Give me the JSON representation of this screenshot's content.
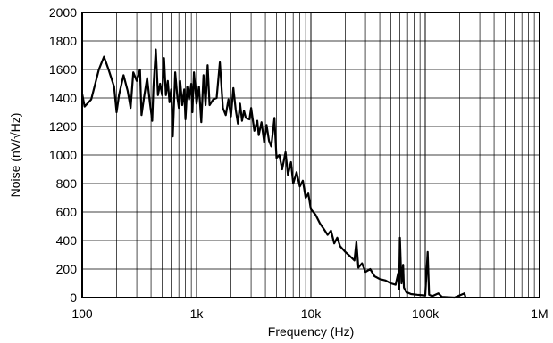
{
  "chart_data": {
    "type": "line",
    "title": "",
    "xlabel": "Frequency (Hz)",
    "ylabel": "Noise (nV/√Hz)",
    "x_scale": "log",
    "xlim": [
      100,
      1000000
    ],
    "ylim": [
      0,
      2000
    ],
    "grid": true,
    "legend": "none",
    "x_ticks": [
      100,
      1000,
      10000,
      100000,
      1000000
    ],
    "x_tick_labels": [
      "100",
      "1k",
      "10k",
      "100k",
      "1M"
    ],
    "y_ticks": [
      0,
      200,
      400,
      600,
      800,
      1000,
      1200,
      1400,
      1600,
      1800,
      2000
    ],
    "y_tick_labels": [
      "0",
      "200",
      "400",
      "600",
      "800",
      "1000",
      "1200",
      "1400",
      "1600",
      "1800",
      "2000"
    ],
    "series": [
      {
        "color": "#000000",
        "points": [
          [
            100,
            1430
          ],
          [
            105,
            1340
          ],
          [
            120,
            1390
          ],
          [
            140,
            1600
          ],
          [
            155,
            1690
          ],
          [
            170,
            1600
          ],
          [
            190,
            1480
          ],
          [
            200,
            1300
          ],
          [
            210,
            1420
          ],
          [
            230,
            1560
          ],
          [
            250,
            1450
          ],
          [
            265,
            1330
          ],
          [
            280,
            1580
          ],
          [
            300,
            1520
          ],
          [
            320,
            1600
          ],
          [
            330,
            1280
          ],
          [
            350,
            1420
          ],
          [
            370,
            1540
          ],
          [
            390,
            1370
          ],
          [
            410,
            1240
          ],
          [
            420,
            1480
          ],
          [
            440,
            1740
          ],
          [
            460,
            1420
          ],
          [
            480,
            1500
          ],
          [
            500,
            1420
          ],
          [
            520,
            1680
          ],
          [
            540,
            1420
          ],
          [
            560,
            1520
          ],
          [
            580,
            1370
          ],
          [
            600,
            1460
          ],
          [
            620,
            1130
          ],
          [
            650,
            1580
          ],
          [
            680,
            1400
          ],
          [
            700,
            1330
          ],
          [
            720,
            1520
          ],
          [
            750,
            1350
          ],
          [
            780,
            1460
          ],
          [
            800,
            1250
          ],
          [
            830,
            1480
          ],
          [
            860,
            1390
          ],
          [
            900,
            1500
          ],
          [
            920,
            1300
          ],
          [
            950,
            1580
          ],
          [
            1000,
            1360
          ],
          [
            1050,
            1480
          ],
          [
            1100,
            1230
          ],
          [
            1150,
            1560
          ],
          [
            1200,
            1350
          ],
          [
            1250,
            1630
          ],
          [
            1300,
            1350
          ],
          [
            1400,
            1390
          ],
          [
            1500,
            1400
          ],
          [
            1600,
            1650
          ],
          [
            1700,
            1330
          ],
          [
            1800,
            1280
          ],
          [
            1900,
            1390
          ],
          [
            2000,
            1270
          ],
          [
            2100,
            1470
          ],
          [
            2200,
            1320
          ],
          [
            2300,
            1220
          ],
          [
            2400,
            1360
          ],
          [
            2500,
            1240
          ],
          [
            2600,
            1310
          ],
          [
            2700,
            1260
          ],
          [
            2900,
            1250
          ],
          [
            3000,
            1330
          ],
          [
            3200,
            1170
          ],
          [
            3400,
            1240
          ],
          [
            3500,
            1140
          ],
          [
            3700,
            1230
          ],
          [
            3900,
            1090
          ],
          [
            4100,
            1210
          ],
          [
            4300,
            1100
          ],
          [
            4500,
            1060
          ],
          [
            4800,
            1260
          ],
          [
            5000,
            980
          ],
          [
            5300,
            1000
          ],
          [
            5600,
            900
          ],
          [
            6000,
            1020
          ],
          [
            6300,
            860
          ],
          [
            6700,
            950
          ],
          [
            7000,
            800
          ],
          [
            7500,
            880
          ],
          [
            8000,
            780
          ],
          [
            8500,
            820
          ],
          [
            9000,
            700
          ],
          [
            9500,
            730
          ],
          [
            10000,
            620
          ],
          [
            11000,
            580
          ],
          [
            12000,
            520
          ],
          [
            13000,
            480
          ],
          [
            14000,
            440
          ],
          [
            15000,
            470
          ],
          [
            16000,
            380
          ],
          [
            17000,
            420
          ],
          [
            18000,
            360
          ],
          [
            20000,
            320
          ],
          [
            22000,
            290
          ],
          [
            24000,
            260
          ],
          [
            25000,
            390
          ],
          [
            26000,
            210
          ],
          [
            28000,
            240
          ],
          [
            30000,
            180
          ],
          [
            33000,
            200
          ],
          [
            36000,
            150
          ],
          [
            40000,
            130
          ],
          [
            45000,
            120
          ],
          [
            50000,
            100
          ],
          [
            55000,
            90
          ],
          [
            58000,
            170
          ],
          [
            59000,
            60
          ],
          [
            60000,
            420
          ],
          [
            61000,
            250
          ],
          [
            62000,
            100
          ],
          [
            64000,
            230
          ],
          [
            65000,
            70
          ],
          [
            68000,
            40
          ],
          [
            75000,
            25
          ],
          [
            85000,
            20
          ],
          [
            100000,
            15
          ],
          [
            105000,
            320
          ],
          [
            108000,
            20
          ],
          [
            115000,
            10
          ],
          [
            130000,
            30
          ],
          [
            140000,
            5
          ],
          [
            180000,
            0
          ],
          [
            220000,
            30
          ],
          [
            225000,
            0
          ]
        ]
      }
    ]
  }
}
